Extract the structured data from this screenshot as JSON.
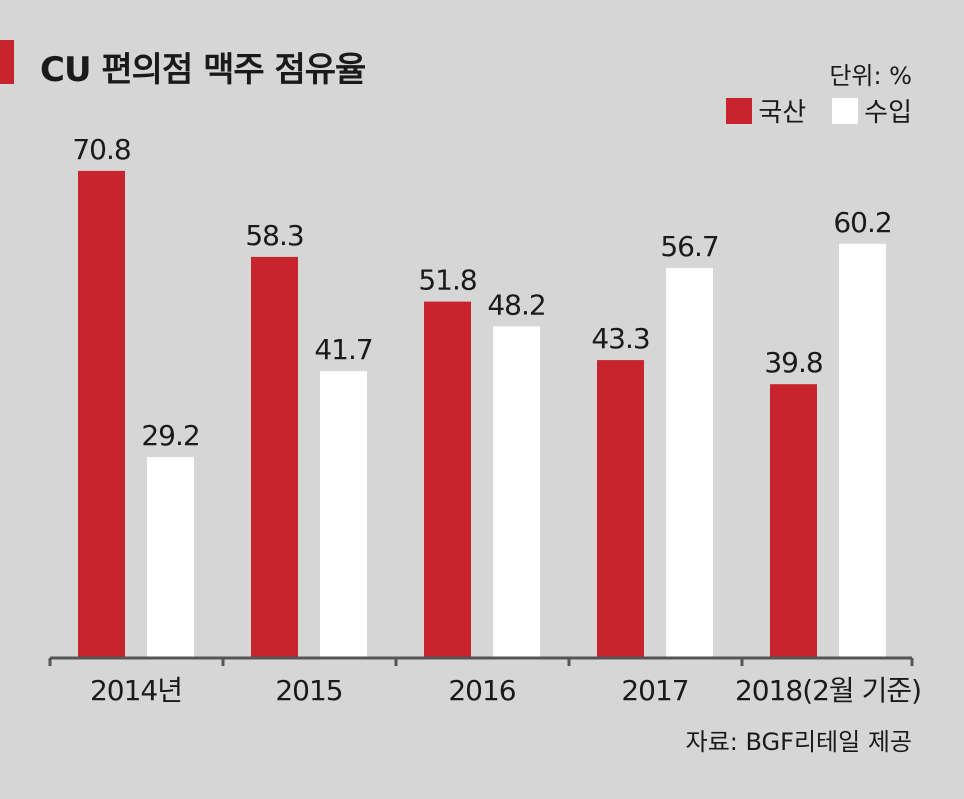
{
  "title": "CU 편의점 맥주 점유율",
  "unit_label": "단위: %",
  "source": "자료: BGF리테일 제공",
  "colors": {
    "background": "#d6d6d7",
    "domestic": "#c8242e",
    "imported": "#ffffff",
    "axis": "#555555",
    "text": "#1a1a1a"
  },
  "chart_data": {
    "type": "bar",
    "categories": [
      "2014년",
      "2015",
      "2016",
      "2017",
      "2018(2월 기준)"
    ],
    "series": [
      {
        "name": "국산",
        "values": [
          70.8,
          58.3,
          51.8,
          43.3,
          39.8
        ]
      },
      {
        "name": "수입",
        "values": [
          29.2,
          41.7,
          48.2,
          56.7,
          60.2
        ]
      }
    ],
    "value_labels": [
      [
        "70.8",
        "58.3",
        "51.8",
        "43.3",
        "39.8"
      ],
      [
        "29.2",
        "41.7",
        "48.2",
        "56.7",
        "60.2"
      ]
    ],
    "ylim": [
      0,
      100
    ],
    "grid": false,
    "legend_position": "top-right"
  }
}
